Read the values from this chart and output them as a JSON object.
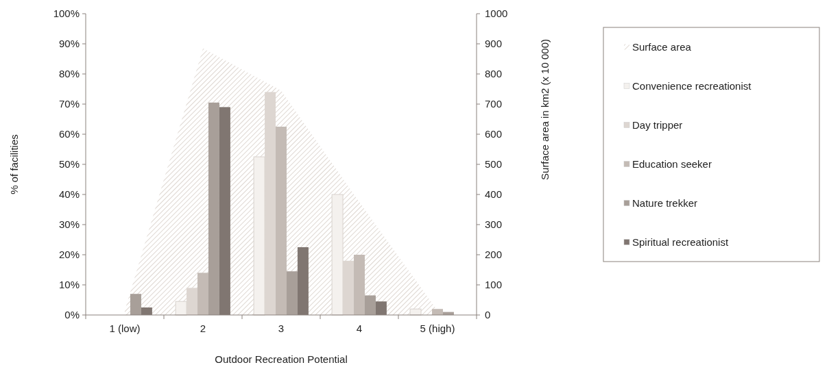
{
  "chart_data": {
    "type": "bar",
    "xlabel": "Outdoor Recreation Potential",
    "ylabel": "% of facilities",
    "y2label": "Surface area in km2 (x 10 000)",
    "categories": [
      "1 (low)",
      "2",
      "3",
      "4",
      "5 (high)"
    ],
    "series": [
      {
        "name": "Surface area",
        "type": "area",
        "axis": "y2",
        "color": "#d6cdc5",
        "values": [
          15,
          885,
          745,
          375,
          15
        ]
      },
      {
        "name": "Convenience recreationist",
        "color": "#f4f1ee",
        "values": [
          0,
          4.5,
          52.5,
          40,
          2
        ]
      },
      {
        "name": "Day tripper",
        "color": "#ddd6d1",
        "values": [
          null,
          9,
          74,
          18,
          null
        ]
      },
      {
        "name": "Education seeker",
        "color": "#c4bbb5",
        "values": [
          null,
          14,
          62.5,
          20,
          2
        ]
      },
      {
        "name": "Nature trekker",
        "color": "#a89f99",
        "values": [
          7,
          70.5,
          14.5,
          6.5,
          1
        ]
      },
      {
        "name": "Spiritual recreationist",
        "color": "#807671",
        "values": [
          2.5,
          69,
          22.5,
          4.5,
          null
        ]
      }
    ],
    "ylim": [
      0,
      100
    ],
    "yticks": [
      {
        "value": 0,
        "label": "0%"
      },
      {
        "value": 10,
        "label": "10%"
      },
      {
        "value": 20,
        "label": "20%"
      },
      {
        "value": 30,
        "label": "30%"
      },
      {
        "value": 40,
        "label": "40%"
      },
      {
        "value": 50,
        "label": "50%"
      },
      {
        "value": 60,
        "label": "60%"
      },
      {
        "value": 70,
        "label": "70%"
      },
      {
        "value": 80,
        "label": "80%"
      },
      {
        "value": 90,
        "label": "90%"
      },
      {
        "value": 100,
        "label": "100%"
      }
    ],
    "y2lim": [
      0,
      1000
    ],
    "y2ticks": [
      0,
      100,
      200,
      300,
      400,
      500,
      600,
      700,
      800,
      900,
      1000
    ],
    "grid": false,
    "legend": "right"
  }
}
